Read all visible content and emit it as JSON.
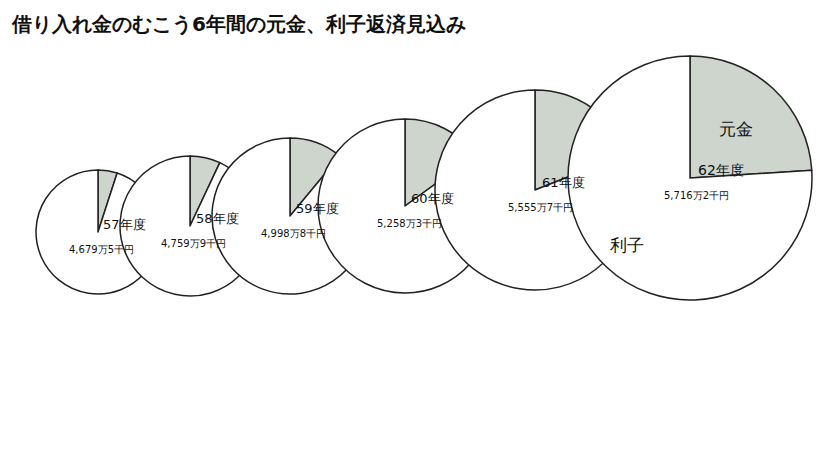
{
  "title": "借り入れ金のむこう6年間の元金、利子返済見込み",
  "chart_data": [
    {
      "type": "pie",
      "title": "57年度",
      "categories": [
        "元金",
        "利子"
      ],
      "values": [
        5,
        95
      ],
      "colors": [
        "#cdd5cc",
        "#ffffff"
      ],
      "total_label": "4,679万5千円"
    },
    {
      "type": "pie",
      "title": "58年度",
      "categories": [
        "元金",
        "利子"
      ],
      "values": [
        7,
        93
      ],
      "colors": [
        "#cdd5cc",
        "#ffffff"
      ],
      "total_label": "4,759万9千円"
    },
    {
      "type": "pie",
      "title": "59年度",
      "categories": [
        "元金",
        "利子"
      ],
      "values": [
        11,
        89
      ],
      "colors": [
        "#cdd5cc",
        "#ffffff"
      ],
      "total_label": "4,998万8千円"
    },
    {
      "type": "pie",
      "title": "60年度",
      "categories": [
        "元金",
        "利子"
      ],
      "values": [
        15,
        85
      ],
      "colors": [
        "#cdd5cc",
        "#ffffff"
      ],
      "total_label": "5,258万3千円"
    },
    {
      "type": "pie",
      "title": "61年度",
      "categories": [
        "元金",
        "利子"
      ],
      "values": [
        19,
        81
      ],
      "colors": [
        "#cdd5cc",
        "#ffffff"
      ],
      "total_label": "5,555万7千円"
    },
    {
      "type": "pie",
      "title": "62年度",
      "categories": [
        "元金",
        "利子"
      ],
      "values": [
        24,
        76
      ],
      "colors": [
        "#cdd5cc",
        "#ffffff"
      ],
      "total_label": "5,716万2千円",
      "annotations": [
        "元金",
        "利子"
      ]
    }
  ]
}
